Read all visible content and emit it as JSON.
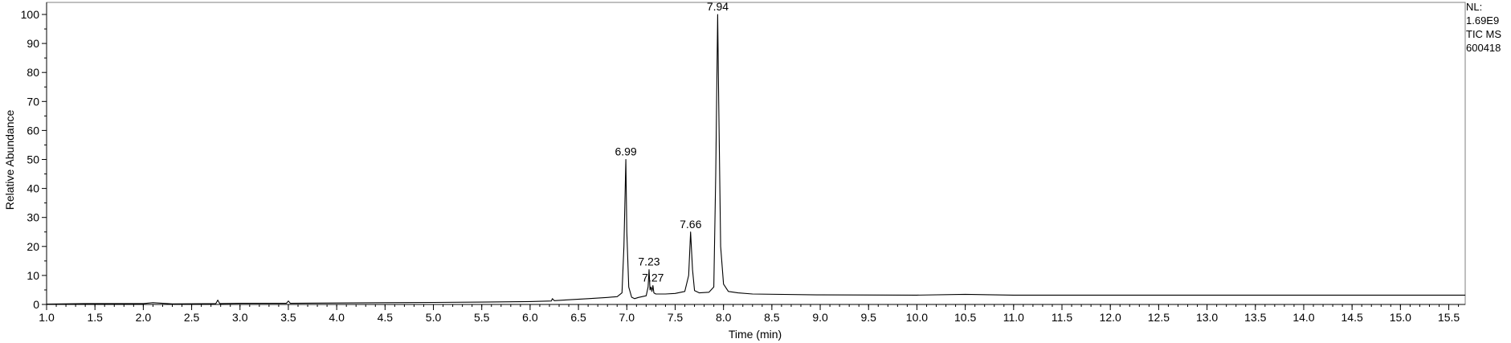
{
  "chart_data": {
    "type": "line",
    "title": "",
    "xlabel": "Time (min)",
    "ylabel": "Relative Abundance",
    "xlim": [
      1.0,
      15.67
    ],
    "ylim": [
      0,
      100
    ],
    "x_ticks": [
      "1.0",
      "1.5",
      "2.0",
      "2.5",
      "3.0",
      "3.5",
      "4.0",
      "4.5",
      "5.0",
      "5.5",
      "6.0",
      "6.5",
      "7.0",
      "7.5",
      "8.0",
      "8.5",
      "9.0",
      "9.5",
      "10.0",
      "10.5",
      "11.0",
      "11.5",
      "12.0",
      "12.5",
      "13.0",
      "13.5",
      "14.0",
      "14.5",
      "15.0",
      "15.5"
    ],
    "y_ticks": [
      "0",
      "10",
      "20",
      "30",
      "40",
      "50",
      "60",
      "70",
      "80",
      "90",
      "100"
    ],
    "grid": false,
    "series": [
      {
        "x": [
          1.0,
          1.4,
          2.0,
          2.1,
          2.3,
          2.75,
          2.77,
          2.79,
          3.0,
          3.48,
          3.5,
          3.52,
          4.0,
          4.5,
          5.0,
          5.5,
          6.0,
          6.22,
          6.23,
          6.25,
          6.4,
          6.6,
          6.8,
          6.9,
          6.95,
          6.97,
          6.99,
          7.0,
          7.02,
          7.05,
          7.08,
          7.12,
          7.2,
          7.22,
          7.23,
          7.24,
          7.25,
          7.26,
          7.27,
          7.28,
          7.3,
          7.4,
          7.5,
          7.6,
          7.64,
          7.66,
          7.68,
          7.7,
          7.75,
          7.85,
          7.9,
          7.92,
          7.94,
          7.95,
          7.97,
          8.0,
          8.05,
          8.15,
          8.3,
          9.0,
          10.0,
          10.5,
          11.0,
          12.0,
          13.0,
          14.0,
          15.0,
          15.67
        ],
        "values": [
          0.1,
          0.3,
          0.3,
          0.6,
          0.2,
          0.3,
          1.5,
          0.3,
          0.4,
          0.4,
          1.2,
          0.4,
          0.5,
          0.6,
          0.7,
          0.8,
          1.0,
          1.2,
          2.0,
          1.3,
          1.6,
          2.0,
          2.4,
          2.7,
          4.0,
          20.0,
          50.0,
          25.0,
          6.0,
          2.5,
          2.0,
          2.4,
          3.0,
          6.0,
          12.0,
          5.0,
          6.0,
          4.5,
          6.5,
          4.0,
          3.6,
          3.6,
          3.8,
          4.5,
          10.0,
          25.0,
          12.0,
          4.8,
          4.0,
          4.2,
          6.0,
          45.0,
          100.0,
          70.0,
          20.0,
          7.0,
          4.5,
          4.0,
          3.6,
          3.3,
          3.2,
          3.5,
          3.2,
          3.2,
          3.2,
          3.2,
          3.2,
          3.2
        ]
      }
    ],
    "peak_labels": [
      {
        "x": 6.99,
        "y": 50,
        "text": "6.99"
      },
      {
        "x": 7.23,
        "y": 12,
        "text": "7.23"
      },
      {
        "x": 7.27,
        "y": 6.5,
        "text": "7.27"
      },
      {
        "x": 7.66,
        "y": 25,
        "text": "7.66"
      },
      {
        "x": 7.94,
        "y": 100,
        "text": "7.94"
      }
    ]
  },
  "side_info": {
    "nl_label": "NL:",
    "nl_value": "1.69E9",
    "trace": "TIC  MS",
    "file": "600418"
  }
}
